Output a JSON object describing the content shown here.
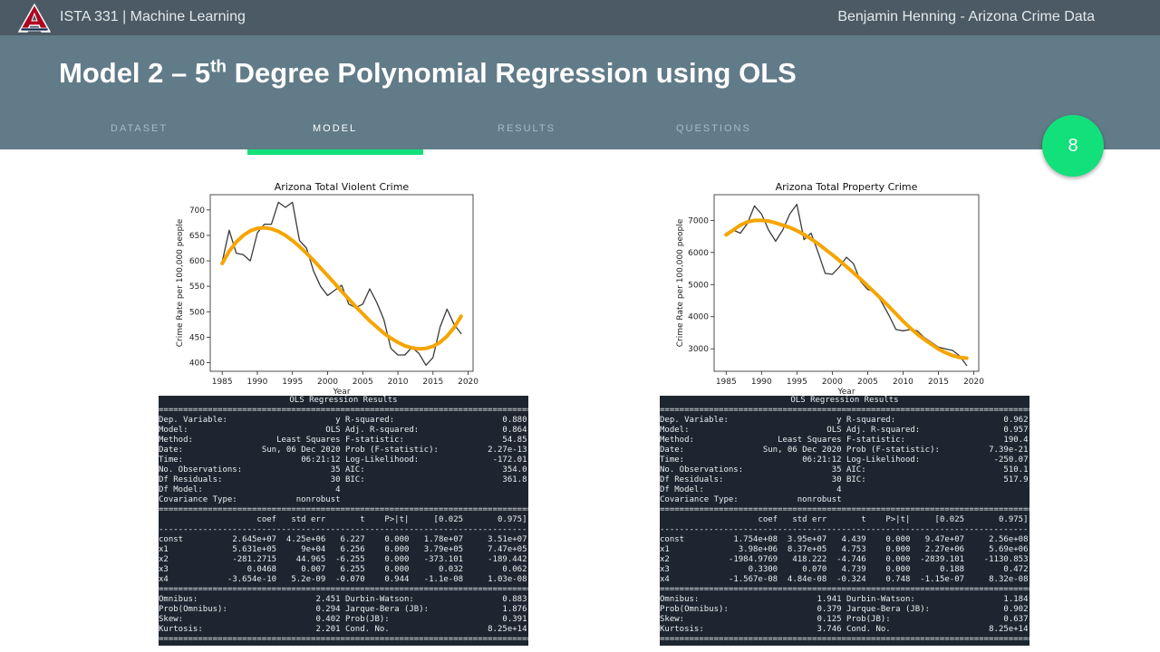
{
  "topbar": {
    "course": "ISTA 331 | Machine Learning",
    "author": "Benjamin Henning - Arizona Crime Data"
  },
  "header": {
    "title_main": "Model 2 – 5",
    "title_sup": "th",
    "title_rest": " Degree Polynomial Regression using OLS"
  },
  "nav": [
    {
      "label": "DATASET",
      "active": false
    },
    {
      "label": "MODEL",
      "active": true
    },
    {
      "label": "RESULTS",
      "active": false
    },
    {
      "label": "QUESTIONS",
      "active": false
    }
  ],
  "badge": {
    "page_number": "8"
  },
  "colors": {
    "topbar": "#4b5a65",
    "header": "#617b88",
    "accent": "#12e07a",
    "fit_line": "#f5a500",
    "data_line": "#3a3a3a",
    "console": "#1d2630"
  },
  "chart_data": [
    {
      "type": "line",
      "title": "Arizona Total Violent Crime",
      "xlabel": "Year",
      "ylabel": "Crime Rate per 100,000 people",
      "xlim": [
        1983.3,
        2020.7
      ],
      "ylim": [
        383,
        730
      ],
      "xticks": [
        1985,
        1990,
        1995,
        2000,
        2005,
        2010,
        2015,
        2020
      ],
      "yticks": [
        400,
        450,
        500,
        550,
        600,
        650,
        700
      ],
      "grid": false,
      "series": [
        {
          "x": [
            1985,
            1986,
            1987,
            1988,
            1989,
            1990,
            1991,
            1992,
            1993,
            1994,
            1995,
            1996,
            1997,
            1998,
            1999,
            2000,
            2001,
            2002,
            2003,
            2004,
            2005,
            2006,
            2007,
            2008,
            2009,
            2010,
            2011,
            2012,
            2013,
            2014,
            2015,
            2016,
            2017,
            2018,
            2019
          ],
          "y": [
            598,
            660,
            615,
            612,
            600,
            655,
            672,
            672,
            715,
            705,
            715,
            640,
            625,
            580,
            550,
            532,
            542,
            552,
            515,
            508,
            515,
            545,
            518,
            485,
            428,
            415,
            415,
            430,
            418,
            395,
            410,
            470,
            505,
            475,
            457
          ]
        },
        {
          "x": [
            1985,
            1986,
            1987,
            1988,
            1989,
            1990,
            1991,
            1992,
            1993,
            1994,
            1995,
            1996,
            1997,
            1998,
            1999,
            2000,
            2001,
            2002,
            2003,
            2004,
            2005,
            2006,
            2007,
            2008,
            2009,
            2010,
            2011,
            2012,
            2013,
            2014,
            2015,
            2016,
            2017,
            2018,
            2019
          ],
          "y": [
            595,
            619,
            637,
            650,
            659,
            664,
            665,
            663,
            658,
            650,
            640,
            628,
            615,
            601,
            586,
            571,
            556,
            540,
            525,
            510,
            496,
            482,
            470,
            458,
            448,
            440,
            433,
            429,
            427,
            428,
            432,
            440,
            452,
            469,
            491
          ]
        }
      ]
    },
    {
      "type": "line",
      "title": "Arizona Total Property Crime",
      "xlabel": "Year",
      "ylabel": "Crime Rate per 100,000 people",
      "xlim": [
        1983.3,
        2020.7
      ],
      "ylim": [
        2300,
        7800
      ],
      "xticks": [
        1985,
        1990,
        1995,
        2000,
        2005,
        2010,
        2015,
        2020
      ],
      "yticks": [
        3000,
        4000,
        5000,
        6000,
        7000
      ],
      "grid": false,
      "series": [
        {
          "x": [
            1985,
            1986,
            1987,
            1988,
            1989,
            1990,
            1991,
            1992,
            1993,
            1994,
            1995,
            1996,
            1997,
            1998,
            1999,
            2000,
            2001,
            2002,
            2003,
            2004,
            2005,
            2006,
            2007,
            2008,
            2009,
            2010,
            2011,
            2012,
            2013,
            2014,
            2015,
            2016,
            2017,
            2018,
            2019
          ],
          "y": [
            6600,
            6700,
            6600,
            6900,
            7450,
            7200,
            6700,
            6350,
            6700,
            7200,
            7500,
            6400,
            6600,
            6000,
            5350,
            5320,
            5550,
            5850,
            5650,
            5100,
            4850,
            4780,
            4450,
            4050,
            3600,
            3560,
            3600,
            3560,
            3350,
            3200,
            3050,
            3000,
            2950,
            2780,
            2480
          ]
        },
        {
          "x": [
            1985,
            1986,
            1987,
            1988,
            1989,
            1990,
            1991,
            1992,
            1993,
            1994,
            1995,
            1996,
            1997,
            1998,
            1999,
            2000,
            2001,
            2002,
            2003,
            2004,
            2005,
            2006,
            2007,
            2008,
            2009,
            2010,
            2011,
            2012,
            2013,
            2014,
            2015,
            2016,
            2017,
            2018,
            2019
          ],
          "y": [
            6550,
            6700,
            6850,
            6950,
            7000,
            7000,
            6980,
            6920,
            6850,
            6780,
            6680,
            6560,
            6420,
            6270,
            6100,
            5930,
            5750,
            5560,
            5370,
            5170,
            4960,
            4750,
            4540,
            4320,
            4090,
            3860,
            3650,
            3460,
            3290,
            3140,
            2990,
            2880,
            2790,
            2730,
            2710
          ]
        }
      ]
    }
  ],
  "regression_tables": [
    {
      "title": "OLS Regression Results",
      "top_left": [
        [
          "Dep. Variable:",
          "y"
        ],
        [
          "Model:",
          "OLS"
        ],
        [
          "Method:",
          "Least Squares"
        ],
        [
          "Date:",
          "Sun, 06 Dec 2020"
        ],
        [
          "Time:",
          "06:21:12"
        ],
        [
          "No. Observations:",
          "35"
        ],
        [
          "Df Residuals:",
          "30"
        ],
        [
          "Df Model:",
          "4"
        ],
        [
          "Covariance Type:",
          "nonrobust"
        ]
      ],
      "top_right": [
        [
          "R-squared:",
          "0.880"
        ],
        [
          "Adj. R-squared:",
          "0.864"
        ],
        [
          "F-statistic:",
          "54.85"
        ],
        [
          "Prob (F-statistic):",
          "2.27e-13"
        ],
        [
          "Log-Likelihood:",
          "-172.01"
        ],
        [
          "AIC:",
          "354.0"
        ],
        [
          "BIC:",
          "361.8"
        ]
      ],
      "coef_header": [
        "coef",
        "std err",
        "t",
        "P>|t|",
        "[0.025",
        "0.975]"
      ],
      "coef_rows": [
        [
          "const",
          "2.645e+07",
          "4.25e+06",
          "6.227",
          "0.000",
          "1.78e+07",
          "3.51e+07"
        ],
        [
          "x1",
          "5.631e+05",
          "9e+04",
          "6.256",
          "0.000",
          "3.79e+05",
          "7.47e+05"
        ],
        [
          "x2",
          "-281.2715",
          "44.965",
          "-6.255",
          "0.000",
          "-373.101",
          "-189.442"
        ],
        [
          "x3",
          "0.0468",
          "0.007",
          "6.255",
          "0.000",
          "0.032",
          "0.062"
        ],
        [
          "x4",
          "-3.654e-10",
          "5.2e-09",
          "-0.070",
          "0.944",
          "-1.1e-08",
          "1.03e-08"
        ]
      ],
      "bottom_left": [
        [
          "Omnibus:",
          "2.451"
        ],
        [
          "Prob(Omnibus):",
          "0.294"
        ],
        [
          "Skew:",
          "0.402"
        ],
        [
          "Kurtosis:",
          "2.201"
        ]
      ],
      "bottom_right": [
        [
          "Durbin-Watson:",
          "0.883"
        ],
        [
          "Jarque-Bera (JB):",
          "1.876"
        ],
        [
          "Prob(JB):",
          "0.391"
        ],
        [
          "Cond. No.",
          "8.25e+14"
        ]
      ]
    },
    {
      "title": "OLS Regression Results",
      "top_left": [
        [
          "Dep. Variable:",
          "y"
        ],
        [
          "Model:",
          "OLS"
        ],
        [
          "Method:",
          "Least Squares"
        ],
        [
          "Date:",
          "Sun, 06 Dec 2020"
        ],
        [
          "Time:",
          "06:21:12"
        ],
        [
          "No. Observations:",
          "35"
        ],
        [
          "Df Residuals:",
          "30"
        ],
        [
          "Df Model:",
          "4"
        ],
        [
          "Covariance Type:",
          "nonrobust"
        ]
      ],
      "top_right": [
        [
          "R-squared:",
          "0.962"
        ],
        [
          "Adj. R-squared:",
          "0.957"
        ],
        [
          "F-statistic:",
          "190.4"
        ],
        [
          "Prob (F-statistic):",
          "7.39e-21"
        ],
        [
          "Log-Likelihood:",
          "-250.07"
        ],
        [
          "AIC:",
          "510.1"
        ],
        [
          "BIC:",
          "517.9"
        ]
      ],
      "coef_header": [
        "coef",
        "std err",
        "t",
        "P>|t|",
        "[0.025",
        "0.975]"
      ],
      "coef_rows": [
        [
          "const",
          "1.754e+08",
          "3.95e+07",
          "4.439",
          "0.000",
          "9.47e+07",
          "2.56e+08"
        ],
        [
          "x1",
          "3.98e+06",
          "8.37e+05",
          "4.753",
          "0.000",
          "2.27e+06",
          "5.69e+06"
        ],
        [
          "x2",
          "-1984.9769",
          "418.222",
          "-4.746",
          "0.000",
          "-2839.101",
          "-1130.853"
        ],
        [
          "x3",
          "0.3300",
          "0.070",
          "4.739",
          "0.000",
          "0.188",
          "0.472"
        ],
        [
          "x4",
          "-1.567e-08",
          "4.84e-08",
          "-0.324",
          "0.748",
          "-1.15e-07",
          "8.32e-08"
        ]
      ],
      "bottom_left": [
        [
          "Omnibus:",
          "1.941"
        ],
        [
          "Prob(Omnibus):",
          "0.379"
        ],
        [
          "Skew:",
          "0.125"
        ],
        [
          "Kurtosis:",
          "3.746"
        ]
      ],
      "bottom_right": [
        [
          "Durbin-Watson:",
          "1.184"
        ],
        [
          "Jarque-Bera (JB):",
          "0.902"
        ],
        [
          "Prob(JB):",
          "0.637"
        ],
        [
          "Cond. No.",
          "8.25e+14"
        ]
      ]
    }
  ]
}
